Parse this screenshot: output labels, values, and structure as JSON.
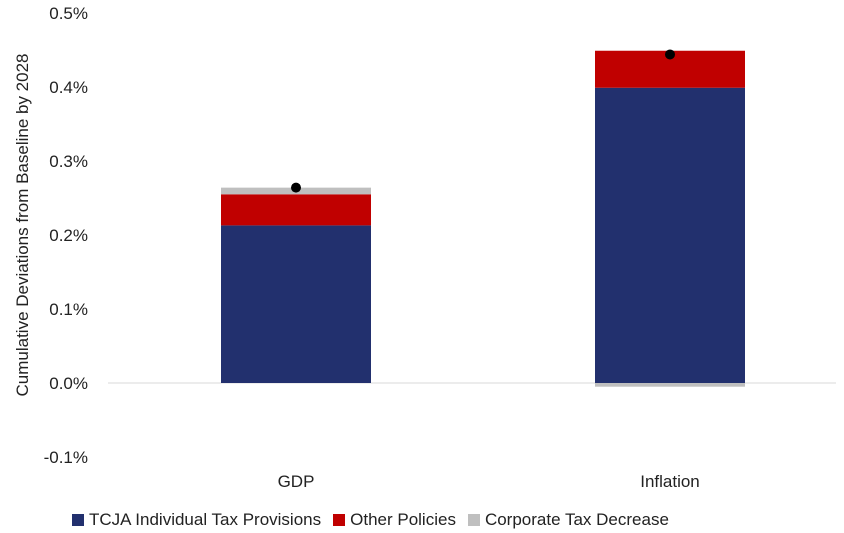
{
  "chart_data": {
    "type": "bar",
    "stacked": true,
    "categories": [
      "GDP",
      "Inflation"
    ],
    "ylabel": "Cumulative Deviations from Baseline by 2028",
    "ylim": [
      -0.1,
      0.5
    ],
    "yticks": [
      "-0.1%",
      "0.0%",
      "0.1%",
      "0.2%",
      "0.3%",
      "0.4%",
      "0.5%"
    ],
    "series": [
      {
        "name": "TCJA Individual Tax Provisions",
        "color": "#22306e",
        "values": [
          0.213,
          0.399
        ]
      },
      {
        "name": "Other Policies",
        "color": "#c00000",
        "values": [
          0.042,
          0.05
        ]
      },
      {
        "name": "Corporate Tax Decrease",
        "color": "#bfbfbf",
        "values": [
          0.009,
          -0.005
        ]
      }
    ],
    "totals": [
      0.264,
      0.444
    ],
    "total_marker_color": "#000000",
    "legend_position": "bottom",
    "grid": false
  }
}
